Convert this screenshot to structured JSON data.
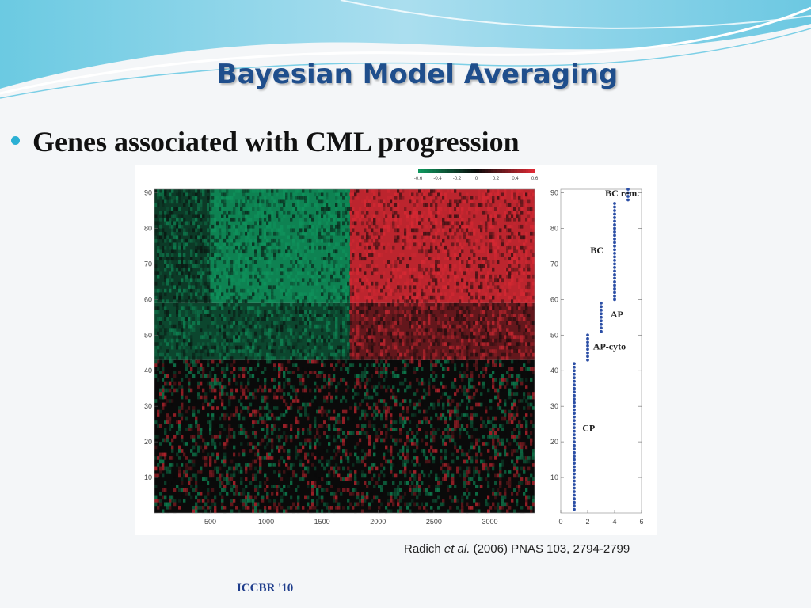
{
  "slide": {
    "title": "Bayesian Model Averaging",
    "bullet": "Genes associated with CML progression",
    "citation": {
      "author": "Radich",
      "etal": "et al.",
      "rest": "(2006) PNAS 103, 2794-2799"
    },
    "footer": "ICCBR '10"
  },
  "colors": {
    "title": "#1f4e8c",
    "bullet": "#2bb0d4",
    "heat_low": "#0f9a60",
    "heat_mid": "#0a0a0a",
    "heat_high": "#e02a35",
    "dots": "#2c4fa6"
  },
  "chart_data": [
    {
      "type": "heatmap",
      "xticks": [
        500,
        1000,
        1500,
        2000,
        2500,
        3000
      ],
      "xlim": [
        1,
        3400
      ],
      "yticks": [
        10,
        20,
        30,
        40,
        50,
        60,
        70,
        80,
        90
      ],
      "ylim": [
        0,
        91
      ],
      "colorbar": {
        "ticks": [
          -0.6,
          -0.4,
          -0.2,
          0,
          0.2,
          0.4,
          0.6
        ],
        "labels": [
          "-0.6",
          "-0.4",
          "-0.2",
          "0",
          "0.2",
          "0.4",
          "0.6"
        ],
        "range": [
          -0.6,
          0.6
        ]
      },
      "blocks": [
        {
          "x": [
            500,
            1750
          ],
          "y": [
            59,
            91
          ],
          "value": -0.5
        },
        {
          "x": [
            1750,
            3400
          ],
          "y": [
            59,
            91
          ],
          "value": 0.5
        },
        {
          "x": [
            1,
            500
          ],
          "y": [
            59,
            91
          ],
          "value": -0.2
        },
        {
          "x": [
            1,
            1750
          ],
          "y": [
            43,
            59
          ],
          "value": -0.25
        },
        {
          "x": [
            1750,
            3400
          ],
          "y": [
            43,
            59
          ],
          "value": 0.25
        },
        {
          "x": [
            1,
            3400
          ],
          "y": [
            0,
            43
          ],
          "value": 0.0
        }
      ]
    },
    {
      "type": "scatter",
      "xticks": [
        0,
        2,
        4,
        6
      ],
      "xlim": [
        0,
        6
      ],
      "yticks": [
        10,
        20,
        30,
        40,
        50,
        60,
        70,
        80,
        90
      ],
      "ylim": [
        0,
        91
      ],
      "series": [
        {
          "x": 1,
          "y_range": [
            1,
            42
          ]
        },
        {
          "x": 2,
          "y_range": [
            43,
            50
          ]
        },
        {
          "x": 3,
          "y_range": [
            51,
            59
          ]
        },
        {
          "x": 4,
          "y_range": [
            60,
            87
          ]
        },
        {
          "x": 5,
          "y_range": [
            88,
            91
          ]
        }
      ],
      "annotations": [
        {
          "text": "BC rem.",
          "x": 3.3,
          "y": 89
        },
        {
          "text": "BC",
          "x": 2.2,
          "y": 73
        },
        {
          "text": "AP",
          "x": 3.7,
          "y": 55
        },
        {
          "text": "AP-cyto",
          "x": 2.4,
          "y": 46
        },
        {
          "text": "CP",
          "x": 1.6,
          "y": 23
        }
      ]
    }
  ]
}
